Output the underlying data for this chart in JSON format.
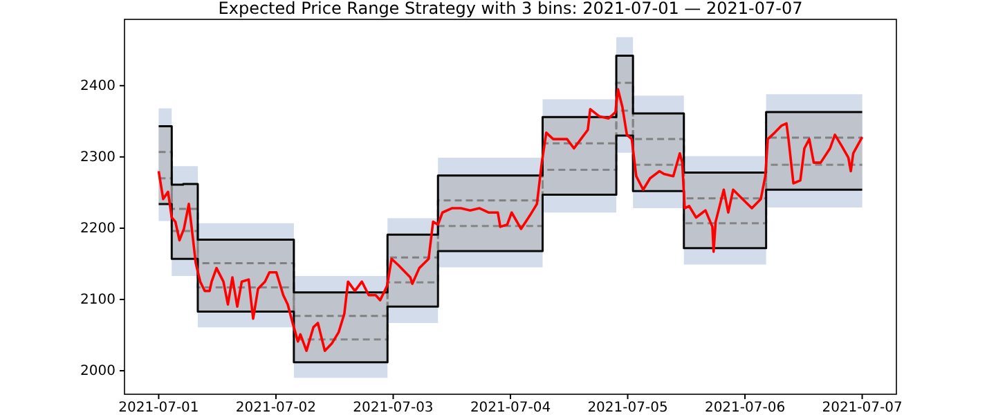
{
  "chart_data": {
    "type": "line",
    "title": "Expected Price Range Strategy with 3 bins: 2021-07-01 — 2021-07-07",
    "xlim": [
      "2021-06-30T17:00",
      "2021-07-07T07:00"
    ],
    "xticks": [
      "2021-07-01",
      "2021-07-02",
      "2021-07-03",
      "2021-07-04",
      "2021-07-05",
      "2021-07-06",
      "2021-07-07"
    ],
    "ylim": [
      1967,
      2493
    ],
    "yticks": [
      2000,
      2100,
      2200,
      2300,
      2400
    ],
    "grid": false,
    "legend": false,
    "series": [
      {
        "type": "step",
        "color": "#d3dcea",
        "x": [
          "2021-07-01T00:00",
          "2021-07-01T02:40",
          "2021-07-01T05:00",
          "2021-07-01T08:00",
          "2021-07-02T03:40",
          "2021-07-02T22:50",
          "2021-07-03T09:10",
          "2021-07-04T06:35",
          "2021-07-04T21:40",
          "2021-07-05T01:05",
          "2021-07-05T11:30",
          "2021-07-06T04:20",
          "2021-07-07T00:00"
        ],
        "values": [
          null,
          null,
          null,
          null,
          null,
          null,
          null,
          null,
          null,
          null,
          null,
          null,
          null
        ],
        "lower": [
          2210,
          2133,
          2133,
          2061,
          1990,
          2067,
          2145,
          2222,
          2306,
          2228,
          2149,
          2229,
          2229
        ],
        "upper": [
          2368,
          2287,
          2287,
          2207,
          2133,
          2214,
          2299,
          2381,
          2468,
          2386,
          2301,
          2388,
          2388
        ]
      },
      {
        "type": "step",
        "color": "#bfc4cc",
        "x": [
          "2021-07-01T00:00",
          "2021-07-01T02:40",
          "2021-07-01T05:00",
          "2021-07-01T08:00",
          "2021-07-02T03:40",
          "2021-07-02T22:50",
          "2021-07-03T09:10",
          "2021-07-04T06:35",
          "2021-07-04T21:40",
          "2021-07-05T01:05",
          "2021-07-05T11:30",
          "2021-07-06T04:20",
          "2021-07-07T00:00"
        ],
        "values": [
          null,
          null,
          null,
          null,
          null,
          null,
          null,
          null,
          null,
          null,
          null,
          null,
          null
        ],
        "lower": [
          2234,
          2157,
          2157,
          2083,
          2012,
          2090,
          2168,
          2247,
          2330,
          2252,
          2172,
          2254,
          2254
        ],
        "upper": [
          2343,
          2261,
          2262,
          2184,
          2110,
          2191,
          2274,
          2356,
          2442,
          2361,
          2278,
          2363,
          2363
        ]
      },
      {
        "type": "step",
        "color": "#808080",
        "line_style": "dashed",
        "x": [
          "2021-07-01T00:00",
          "2021-07-01T02:40",
          "2021-07-01T05:00",
          "2021-07-01T08:00",
          "2021-07-02T03:40",
          "2021-07-02T22:50",
          "2021-07-03T09:10",
          "2021-07-04T06:35",
          "2021-07-04T21:40",
          "2021-07-05T01:05",
          "2021-07-05T11:30",
          "2021-07-06T04:20",
          "2021-07-07T00:00"
        ],
        "values": [
          2307,
          2227,
          2227,
          2151,
          2077,
          2159,
          2239,
          2319,
          2404,
          2325,
          2242,
          2327,
          2327
        ]
      },
      {
        "type": "step",
        "color": "#858585",
        "line_style": "dashed",
        "x": [
          "2021-07-01T00:00",
          "2021-07-01T02:40",
          "2021-07-01T05:00",
          "2021-07-01T08:00",
          "2021-07-02T03:40",
          "2021-07-02T22:50",
          "2021-07-03T09:10",
          "2021-07-04T06:35",
          "2021-07-04T21:40",
          "2021-07-05T01:05",
          "2021-07-05T11:30",
          "2021-07-06T04:20",
          "2021-07-07T00:00"
        ],
        "values": [
          2270,
          2196,
          2196,
          2117,
          2044,
          2124,
          2203,
          2282,
          2365,
          2289,
          2207,
          2289,
          2289
        ]
      },
      {
        "type": "step",
        "color": "#000000",
        "line_style": "solid",
        "x": [
          "2021-07-01T00:00",
          "2021-07-01T02:40",
          "2021-07-01T05:00",
          "2021-07-01T08:00",
          "2021-07-02T03:40",
          "2021-07-02T22:50",
          "2021-07-03T09:10",
          "2021-07-04T06:35",
          "2021-07-04T21:40",
          "2021-07-05T01:05",
          "2021-07-05T11:30",
          "2021-07-06T04:20",
          "2021-07-07T00:00"
        ],
        "values": [
          2343,
          2261,
          2262,
          2184,
          2110,
          2191,
          2274,
          2356,
          2442,
          2361,
          2278,
          2363,
          2363
        ]
      },
      {
        "type": "step",
        "color": "#0a0a0a",
        "line_style": "solid",
        "x": [
          "2021-07-01T00:00",
          "2021-07-01T02:40",
          "2021-07-01T05:00",
          "2021-07-01T08:00",
          "2021-07-02T03:40",
          "2021-07-02T22:50",
          "2021-07-03T09:10",
          "2021-07-04T06:35",
          "2021-07-04T21:40",
          "2021-07-05T01:05",
          "2021-07-05T11:30",
          "2021-07-06T04:20",
          "2021-07-07T00:00"
        ],
        "values": [
          2234,
          2157,
          2157,
          2083,
          2012,
          2090,
          2168,
          2247,
          2330,
          2252,
          2172,
          2254,
          2254
        ]
      },
      {
        "color": "#ff0000",
        "line_style": "solid",
        "x": [
          "2021-07-01T00:00",
          "2021-07-01T00:55",
          "2021-07-01T01:55",
          "2021-07-01T02:40",
          "2021-07-01T03:25",
          "2021-07-01T04:15",
          "2021-07-01T05:10",
          "2021-07-01T06:10",
          "2021-07-01T06:50",
          "2021-07-01T07:35",
          "2021-07-01T08:30",
          "2021-07-01T09:25",
          "2021-07-01T10:25",
          "2021-07-01T10:50",
          "2021-07-01T11:50",
          "2021-07-01T13:15",
          "2021-07-01T14:10",
          "2021-07-01T15:05",
          "2021-07-01T16:05",
          "2021-07-01T17:00",
          "2021-07-01T18:25",
          "2021-07-01T19:20",
          "2021-07-01T20:20",
          "2021-07-01T21:45",
          "2021-07-01T22:40",
          "2021-07-02T00:05",
          "2021-07-02T01:30",
          "2021-07-02T02:25",
          "2021-07-02T03:25",
          "2021-07-02T04:30",
          "2021-07-02T05:00",
          "2021-07-02T06:15",
          "2021-07-02T07:40",
          "2021-07-02T08:35",
          "2021-07-02T10:00",
          "2021-07-02T11:25",
          "2021-07-02T12:50",
          "2021-07-02T14:00",
          "2021-07-02T14:45",
          "2021-07-02T16:10",
          "2021-07-02T17:35",
          "2021-07-02T19:00",
          "2021-07-02T20:25",
          "2021-07-02T21:20",
          "2021-07-02T22:45",
          "2021-07-02T23:40",
          "2021-07-03T01:05",
          "2021-07-03T02:05",
          "2021-07-03T03:30",
          "2021-07-03T03:55",
          "2021-07-03T05:20",
          "2021-07-03T07:15",
          "2021-07-03T08:10",
          "2021-07-03T09:10",
          "2021-07-03T10:05",
          "2021-07-03T12:00",
          "2021-07-03T13:50",
          "2021-07-03T15:45",
          "2021-07-03T17:40",
          "2021-07-03T19:30",
          "2021-07-03T21:25",
          "2021-07-03T21:55",
          "2021-07-03T23:20",
          "2021-07-04T00:15",
          "2021-07-04T02:10",
          "2021-07-04T04:00",
          "2021-07-04T05:25",
          "2021-07-04T06:25",
          "2021-07-04T07:20",
          "2021-07-04T08:45",
          "2021-07-04T10:10",
          "2021-07-04T11:35",
          "2021-07-04T13:00",
          "2021-07-04T14:25",
          "2021-07-04T15:50",
          "2021-07-04T16:20",
          "2021-07-04T18:10",
          "2021-07-04T20:05",
          "2021-07-04T21:30",
          "2021-07-04T22:00",
          "2021-07-04T22:55",
          "2021-07-04T23:50",
          "2021-07-05T00:50",
          "2021-07-05T01:45",
          "2021-07-05T03:10",
          "2021-07-05T04:35",
          "2021-07-05T06:30",
          "2021-07-05T07:25",
          "2021-07-05T09:20",
          "2021-07-05T10:40",
          "2021-07-05T11:10",
          "2021-07-05T11:40",
          "2021-07-05T12:35",
          "2021-07-05T14:00",
          "2021-07-05T15:55",
          "2021-07-05T17:20",
          "2021-07-05T17:35",
          "2021-07-05T18:00",
          "2021-07-05T19:40",
          "2021-07-05T20:35",
          "2021-07-05T21:35",
          "2021-07-05T23:30",
          "2021-07-06T01:25",
          "2021-07-06T03:15",
          "2021-07-06T04:10",
          "2021-07-06T04:40",
          "2021-07-06T06:05",
          "2021-07-06T07:30",
          "2021-07-06T08:30",
          "2021-07-06T08:55",
          "2021-07-06T09:55",
          "2021-07-06T11:20",
          "2021-07-06T12:10",
          "2021-07-06T13:10",
          "2021-07-06T14:05",
          "2021-07-06T15:30",
          "2021-07-06T17:25",
          "2021-07-06T18:25",
          "2021-07-06T19:50",
          "2021-07-06T21:10",
          "2021-07-06T21:40",
          "2021-07-06T22:10",
          "2021-07-07T00:00"
        ],
        "values": [
          2280,
          2241,
          2251,
          2215,
          2209,
          2183,
          2199,
          2234,
          2196,
          2151,
          2125,
          2112,
          2112,
          2125,
          2144,
          2125,
          2093,
          2131,
          2090,
          2125,
          2128,
          2073,
          2115,
          2125,
          2138,
          2138,
          2106,
          2093,
          2067,
          2041,
          2051,
          2028,
          2061,
          2067,
          2028,
          2038,
          2054,
          2080,
          2125,
          2112,
          2125,
          2106,
          2106,
          2099,
          2119,
          2157,
          2148,
          2141,
          2131,
          2122,
          2144,
          2157,
          2209,
          2205,
          2222,
          2228,
          2228,
          2225,
          2228,
          2222,
          2222,
          2202,
          2205,
          2222,
          2199,
          2218,
          2234,
          2292,
          2334,
          2325,
          2325,
          2325,
          2312,
          2325,
          2338,
          2367,
          2357,
          2354,
          2363,
          2395,
          2370,
          2331,
          2325,
          2273,
          2254,
          2270,
          2280,
          2276,
          2273,
          2305,
          2292,
          2228,
          2231,
          2215,
          2225,
          2202,
          2167,
          2209,
          2254,
          2222,
          2254,
          2241,
          2228,
          2241,
          2273,
          2325,
          2334,
          2344,
          2347,
          2325,
          2263,
          2267,
          2312,
          2325,
          2292,
          2292,
          2312,
          2331,
          2315,
          2299,
          2280,
          2305,
          2328
        ]
      }
    ]
  }
}
